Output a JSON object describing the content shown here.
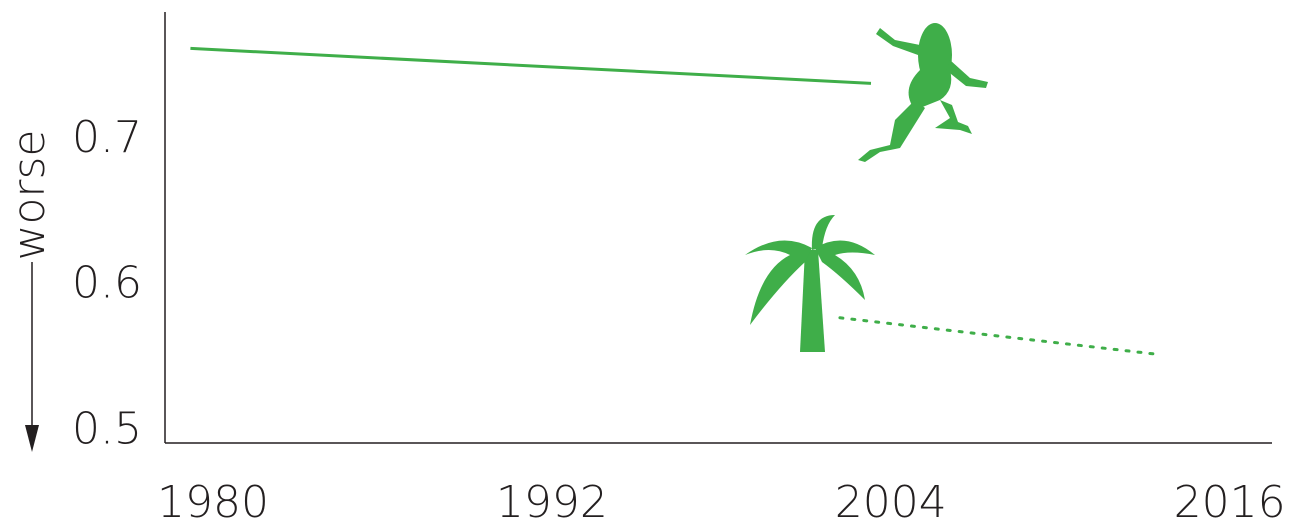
{
  "chart_data": {
    "type": "line",
    "y_label": "worse",
    "xlim": [
      1978.3,
      2017.5
    ],
    "xticks": [
      1980,
      1992,
      2004,
      2016
    ],
    "ylim": [
      0.492,
      0.788
    ],
    "yticks": [
      0.5,
      0.6,
      0.7
    ],
    "grid": false,
    "series": [
      {
        "color": "#3fae49",
        "style": "solid",
        "x": [
          1979.2,
          2003.3
        ],
        "values": [
          0.763,
          0.739
        ]
      },
      {
        "color": "#3fae49",
        "style": "dotted",
        "x": [
          2002.2,
          2013.4
        ],
        "values": [
          0.578,
          0.553
        ]
      }
    ]
  }
}
